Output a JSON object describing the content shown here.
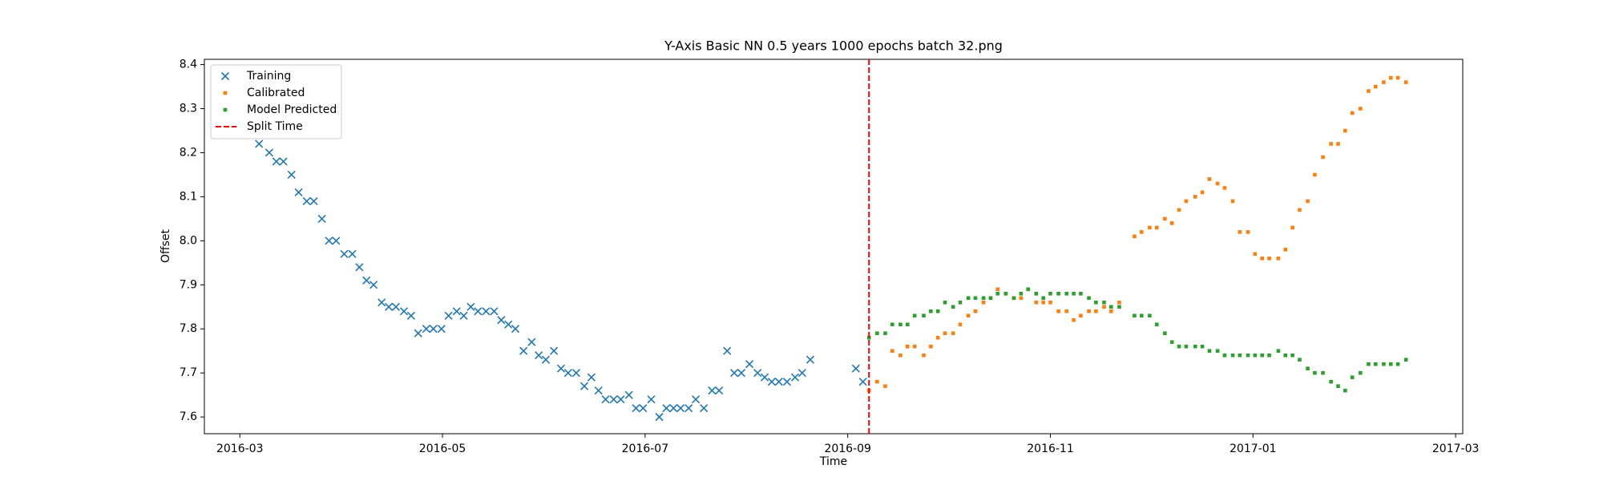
{
  "chart_data": {
    "type": "scatter",
    "title": "Y-Axis Basic NN 0.5 years 1000 epochs batch 32.png",
    "x_label": "Time",
    "y_label": "Offset",
    "xlim": [
      2.65,
      15.07
    ],
    "ylim": [
      7.562,
      8.412
    ],
    "xticks": [
      {
        "value": 3,
        "label": "2016-03"
      },
      {
        "value": 5,
        "label": "2016-05"
      },
      {
        "value": 7,
        "label": "2016-07"
      },
      {
        "value": 9,
        "label": "2016-09"
      },
      {
        "value": 11,
        "label": "2016-11"
      },
      {
        "value": 13,
        "label": "2017-01"
      },
      {
        "value": 15,
        "label": "2017-03"
      }
    ],
    "yticks": [
      7.6,
      7.7,
      7.8,
      7.9,
      {
        "value": 8,
        "label": "8.0"
      },
      8.1,
      8.2,
      8.3,
      8.4
    ],
    "grid": false,
    "legend": "upper left",
    "series": [
      {
        "name": "Training",
        "color": "#1f77b4",
        "marker": "x",
        "x": [
          3.19,
          3.29,
          3.36,
          3.43,
          3.51,
          3.58,
          3.66,
          3.73,
          3.81,
          3.88,
          3.95,
          4.03,
          4.11,
          4.18,
          4.25,
          4.32,
          4.4,
          4.47,
          4.54,
          4.62,
          4.69,
          4.76,
          4.84,
          4.91,
          4.99,
          5.06,
          5.14,
          5.21,
          5.28,
          5.35,
          5.43,
          5.51,
          5.58,
          5.65,
          5.72,
          5.8,
          5.88,
          5.95,
          6.02,
          6.1,
          6.17,
          6.24,
          6.32,
          6.4,
          6.47,
          6.54,
          6.61,
          6.69,
          6.76,
          6.84,
          6.91,
          6.98,
          7.06,
          7.14,
          7.21,
          7.28,
          7.35,
          7.43,
          7.5,
          7.58,
          7.66,
          7.73,
          7.81,
          7.88,
          7.95,
          8.03,
          8.11,
          8.18,
          8.25,
          8.32,
          8.4,
          8.48,
          8.55,
          8.63,
          9.08,
          9.15
        ],
        "values": [
          8.22,
          8.2,
          8.18,
          8.18,
          8.15,
          8.11,
          8.09,
          8.09,
          8.05,
          8.0,
          8.0,
          7.97,
          7.97,
          7.94,
          7.91,
          7.9,
          7.86,
          7.85,
          7.85,
          7.84,
          7.83,
          7.79,
          7.8,
          7.8,
          7.8,
          7.83,
          7.84,
          7.83,
          7.85,
          7.84,
          7.84,
          7.84,
          7.82,
          7.81,
          7.8,
          7.75,
          7.77,
          7.74,
          7.73,
          7.75,
          7.71,
          7.7,
          7.7,
          7.67,
          7.69,
          7.66,
          7.64,
          7.64,
          7.64,
          7.65,
          7.62,
          7.62,
          7.64,
          7.6,
          7.62,
          7.62,
          7.62,
          7.62,
          7.64,
          7.62,
          7.66,
          7.66,
          7.75,
          7.7,
          7.7,
          7.72,
          7.7,
          7.69,
          7.68,
          7.68,
          7.68,
          7.69,
          7.7,
          7.73,
          7.71,
          7.68
        ]
      },
      {
        "name": "Calibrated",
        "color": "#ff7f0e",
        "marker": "s",
        "x": [
          9.21,
          9.29,
          9.37,
          9.44,
          9.52,
          9.59,
          9.66,
          9.75,
          9.82,
          9.89,
          9.96,
          10.04,
          10.11,
          10.19,
          10.26,
          10.34,
          10.41,
          10.48,
          10.56,
          10.64,
          10.71,
          10.78,
          10.86,
          10.93,
          11.0,
          11.08,
          11.16,
          11.23,
          11.3,
          11.38,
          11.45,
          11.53,
          11.6,
          11.68,
          11.83,
          11.9,
          11.98,
          12.05,
          12.13,
          12.2,
          12.27,
          12.34,
          12.43,
          12.5,
          12.57,
          12.65,
          12.72,
          12.8,
          12.87,
          12.95,
          13.02,
          13.09,
          13.16,
          13.25,
          13.32,
          13.39,
          13.46,
          13.54,
          13.61,
          13.69,
          13.77,
          13.84,
          13.91,
          13.98,
          14.06,
          14.14,
          14.21,
          14.29,
          14.36,
          14.43,
          14.51
        ],
        "values": [
          7.66,
          7.68,
          7.67,
          7.75,
          7.74,
          7.76,
          7.76,
          7.74,
          7.76,
          7.78,
          7.79,
          7.79,
          7.81,
          7.83,
          7.84,
          7.86,
          7.87,
          7.89,
          7.88,
          7.87,
          7.87,
          7.89,
          7.86,
          7.86,
          7.86,
          7.84,
          7.84,
          7.82,
          7.83,
          7.84,
          7.84,
          7.85,
          7.84,
          7.86,
          8.01,
          8.02,
          8.03,
          8.03,
          8.05,
          8.04,
          8.07,
          8.09,
          8.1,
          8.11,
          8.14,
          8.13,
          8.12,
          8.09,
          8.02,
          8.02,
          7.97,
          7.96,
          7.96,
          7.96,
          7.98,
          8.03,
          8.07,
          8.09,
          8.15,
          8.19,
          8.22,
          8.22,
          8.25,
          8.29,
          8.3,
          8.34,
          8.35,
          8.36,
          8.37,
          8.37,
          8.36
        ]
      },
      {
        "name": "Model Predicted",
        "color": "#2ca02c",
        "marker": "s",
        "x": [
          9.21,
          9.29,
          9.37,
          9.44,
          9.52,
          9.59,
          9.66,
          9.75,
          9.82,
          9.89,
          9.96,
          10.04,
          10.11,
          10.19,
          10.26,
          10.34,
          10.41,
          10.48,
          10.56,
          10.64,
          10.71,
          10.78,
          10.86,
          10.93,
          11.0,
          11.08,
          11.16,
          11.23,
          11.3,
          11.38,
          11.45,
          11.53,
          11.6,
          11.68,
          11.83,
          11.9,
          11.98,
          12.05,
          12.13,
          12.2,
          12.27,
          12.34,
          12.43,
          12.5,
          12.57,
          12.65,
          12.72,
          12.8,
          12.87,
          12.95,
          13.02,
          13.09,
          13.16,
          13.25,
          13.32,
          13.39,
          13.46,
          13.54,
          13.61,
          13.69,
          13.77,
          13.84,
          13.91,
          13.98,
          14.06,
          14.14,
          14.21,
          14.29,
          14.36,
          14.43,
          14.51
        ],
        "values": [
          7.78,
          7.79,
          7.79,
          7.81,
          7.81,
          7.81,
          7.83,
          7.83,
          7.84,
          7.84,
          7.86,
          7.85,
          7.86,
          7.87,
          7.87,
          7.87,
          7.87,
          7.88,
          7.88,
          7.87,
          7.88,
          7.89,
          7.88,
          7.87,
          7.88,
          7.88,
          7.88,
          7.88,
          7.88,
          7.87,
          7.86,
          7.86,
          7.85,
          7.85,
          7.83,
          7.83,
          7.83,
          7.81,
          7.79,
          7.77,
          7.76,
          7.76,
          7.76,
          7.76,
          7.75,
          7.75,
          7.74,
          7.74,
          7.74,
          7.74,
          7.74,
          7.74,
          7.74,
          7.75,
          7.74,
          7.74,
          7.73,
          7.71,
          7.7,
          7.7,
          7.68,
          7.67,
          7.66,
          7.69,
          7.7,
          7.72,
          7.72,
          7.72,
          7.72,
          7.72,
          7.73
        ]
      }
    ],
    "vlines": [
      {
        "name": "Split Time",
        "x": 9.21,
        "color": "#ff0000",
        "style": "dashed"
      }
    ]
  }
}
